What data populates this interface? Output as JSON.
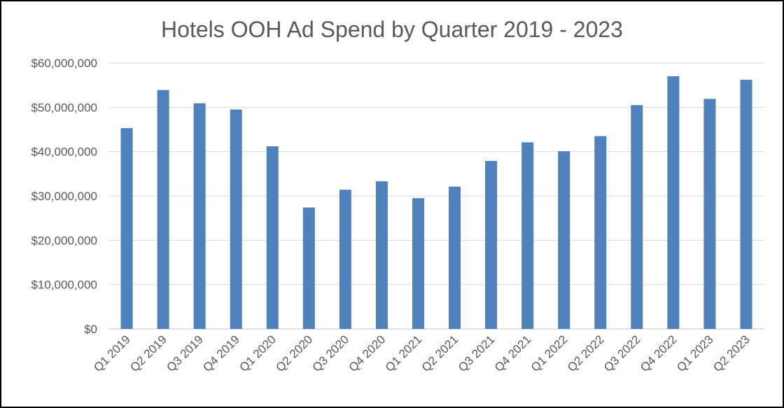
{
  "chart_data": {
    "type": "bar",
    "title": "Hotels OOH Ad Spend by Quarter 2019 - 2023",
    "xlabel": "",
    "ylabel": "",
    "categories": [
      "Q1 2019",
      "Q2 2019",
      "Q3 2019",
      "Q4 2019",
      "Q1 2020",
      "Q2 2020",
      "Q3 2020",
      "Q4 2020",
      "Q1 2021",
      "Q2 2021",
      "Q3 2021",
      "Q4 2021",
      "Q1 2022",
      "Q2 2022",
      "Q3 2022",
      "Q4 2022",
      "Q1 2023",
      "Q2 2023"
    ],
    "values": [
      45300000,
      53900000,
      50900000,
      49500000,
      41200000,
      27400000,
      31400000,
      33300000,
      29500000,
      32100000,
      37900000,
      42100000,
      40100000,
      43500000,
      50500000,
      57000000,
      51900000,
      56200000
    ],
    "ylim": [
      0,
      60000000
    ],
    "yticks": [
      0,
      10000000,
      20000000,
      30000000,
      40000000,
      50000000,
      60000000
    ],
    "ytick_labels": [
      "$0",
      "$10,000,000",
      "$20,000,000",
      "$30,000,000",
      "$40,000,000",
      "$50,000,000",
      "$60,000,000"
    ],
    "grid": true,
    "bar_color": "#4F81BD",
    "grid_color": "#D9D9D9"
  }
}
